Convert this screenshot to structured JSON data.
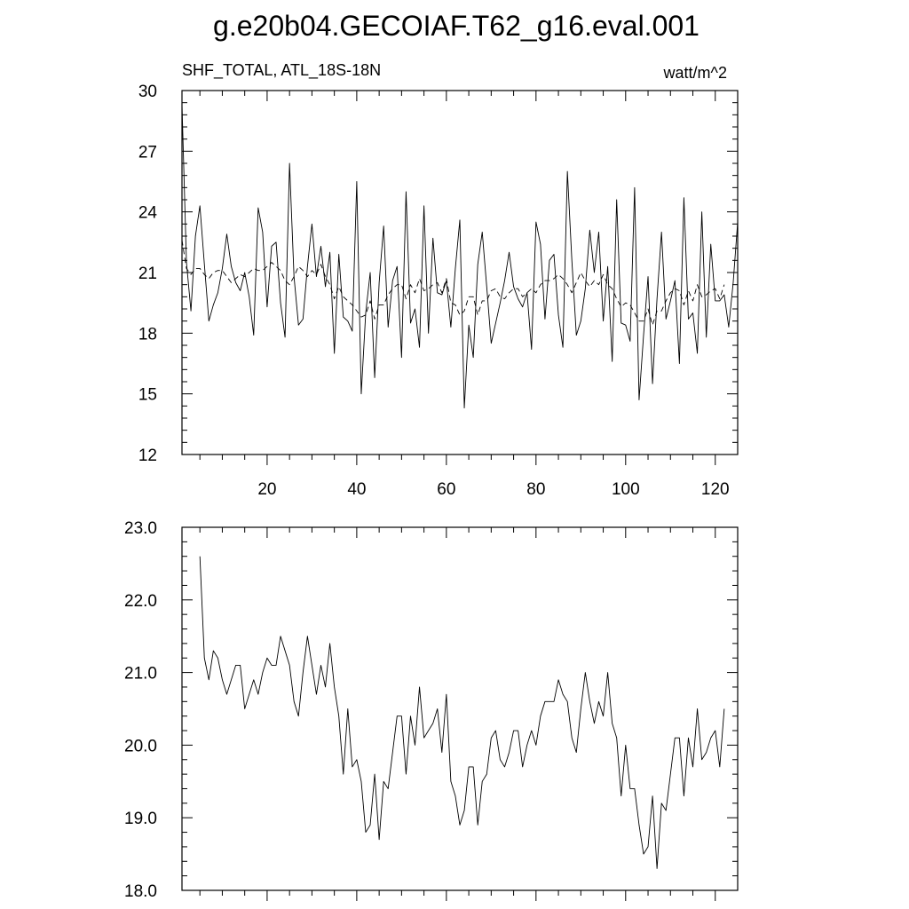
{
  "page_title": "g.e20b04.GECOIAF.T62_g16.eval.001",
  "colors": {
    "background": "#ffffff",
    "line": "#000000"
  },
  "chart_data": [
    {
      "type": "line",
      "left_label": "SHF_TOTAL, ATL_18S-18N",
      "right_label": "watt/m^2",
      "xlim": [
        1,
        125
      ],
      "ylim": [
        12,
        30
      ],
      "x_ticks": [
        20,
        40,
        60,
        80,
        100,
        120
      ],
      "y_ticks": [
        12,
        15,
        18,
        21,
        24,
        27,
        30
      ],
      "y_tick_labels": [
        "12",
        "15",
        "18",
        "21",
        "24",
        "27",
        "30"
      ],
      "grid": false,
      "series": [
        {
          "style": "solid",
          "values": [
            29.3,
            21.5,
            19.1,
            22.8,
            24.3,
            21.4,
            18.6,
            19.4,
            20.0,
            21.2,
            22.9,
            21.3,
            20.5,
            20.1,
            21.0,
            19.8,
            17.9,
            24.2,
            23.0,
            19.3,
            22.3,
            22.5,
            19.5,
            17.8,
            26.4,
            20.8,
            18.4,
            18.7,
            21.3,
            23.4,
            20.8,
            22.3,
            20.3,
            22.0,
            17.0,
            21.9,
            18.8,
            18.6,
            18.1,
            25.5,
            15.0,
            19.0,
            21.0,
            15.8,
            20.5,
            23.3,
            18.3,
            20.6,
            21.3,
            16.8,
            25.0,
            18.5,
            19.2,
            17.3,
            24.3,
            18.0,
            22.7,
            20.0,
            19.9,
            20.6,
            18.3,
            21.2,
            23.6,
            14.3,
            18.4,
            16.8,
            21.4,
            23.0,
            20.3,
            17.5,
            18.5,
            19.5,
            20.6,
            22.0,
            20.3,
            19.7,
            19.3,
            20.0,
            17.2,
            23.5,
            22.4,
            18.7,
            21.6,
            21.9,
            18.9,
            17.3,
            26.0,
            21.6,
            17.9,
            18.6,
            20.2,
            23.1,
            21.0,
            23.0,
            18.6,
            21.3,
            16.6,
            24.6,
            18.5,
            18.4,
            17.6,
            25.2,
            14.7,
            17.9,
            20.8,
            15.5,
            19.7,
            23.0,
            18.7,
            19.6,
            20.6,
            16.5,
            24.7,
            18.7,
            19.0,
            17.0,
            24.0,
            17.8,
            22.4,
            19.6,
            19.6,
            19.9,
            18.3,
            20.5,
            23.5
          ]
        },
        {
          "style": "dashed",
          "values": [
            22.6,
            21.2,
            20.9,
            21.2,
            21.2,
            20.9,
            20.7,
            21.0,
            21.1,
            21.1,
            20.8,
            20.5,
            20.7,
            20.9,
            20.8,
            21.0,
            21.2,
            21.1,
            21.1,
            21.3,
            21.5,
            21.3,
            21.1,
            20.6,
            20.4,
            20.8,
            21.3,
            21.1,
            20.8,
            21.1,
            20.9,
            21.4,
            20.8,
            20.4,
            19.7,
            20.3,
            19.8,
            19.6,
            19.4,
            19.1,
            18.8,
            18.9,
            19.6,
            18.7,
            19.4,
            19.4,
            19.9,
            20.2,
            20.4,
            20.4,
            19.7,
            20.4,
            20.0,
            20.7,
            20.1,
            20.2,
            20.4,
            20.5,
            20.0,
            20.7,
            19.5,
            19.4,
            18.9,
            19.1,
            19.8,
            19.8,
            18.9,
            19.6,
            19.6,
            20.1,
            20.2,
            19.8,
            19.7,
            20.0,
            20.2,
            20.2,
            19.8,
            20.0,
            20.2,
            20.0,
            20.4,
            20.6,
            20.6,
            20.7,
            20.9,
            20.7,
            20.4,
            20.0,
            20.5,
            21.0,
            20.6,
            20.3,
            20.6,
            20.4,
            20.9,
            20.4,
            20.2,
            19.7,
            19.3,
            19.5,
            19.4,
            19.0,
            18.6,
            18.6,
            19.2,
            18.4,
            19.1,
            19.1,
            19.6,
            20.0,
            20.2,
            20.1,
            19.4,
            20.1,
            19.6,
            20.4,
            19.8,
            19.9,
            20.1,
            20.2,
            19.7,
            20.4
          ]
        }
      ]
    },
    {
      "type": "line",
      "xlim": [
        1,
        125
      ],
      "ylim": [
        18,
        23
      ],
      "x_ticks": [
        20,
        40,
        60,
        80,
        100,
        120
      ],
      "y_ticks": [
        18,
        19,
        20,
        21,
        22,
        23
      ],
      "y_tick_labels": [
        "18.0",
        "19.0",
        "20.0",
        "21.0",
        "22.0",
        "23.0"
      ],
      "grid": false,
      "series": [
        {
          "style": "solid",
          "x_start": 5,
          "values": [
            22.6,
            21.2,
            20.9,
            21.3,
            21.2,
            20.9,
            20.7,
            20.9,
            21.1,
            21.1,
            20.5,
            20.7,
            20.9,
            20.7,
            21.0,
            21.2,
            21.1,
            21.1,
            21.5,
            21.3,
            21.1,
            20.6,
            20.4,
            21.0,
            21.5,
            21.1,
            20.7,
            21.1,
            20.8,
            21.4,
            20.8,
            20.4,
            19.6,
            20.5,
            19.7,
            19.8,
            19.5,
            18.8,
            18.9,
            19.6,
            18.7,
            19.5,
            19.4,
            19.9,
            20.4,
            20.4,
            19.6,
            20.4,
            20.0,
            20.8,
            20.1,
            20.2,
            20.3,
            20.5,
            19.9,
            20.7,
            19.5,
            19.3,
            18.9,
            19.1,
            19.7,
            19.7,
            18.9,
            19.5,
            19.6,
            20.1,
            20.2,
            19.8,
            19.7,
            19.9,
            20.2,
            20.2,
            19.7,
            20.0,
            20.2,
            20.0,
            20.4,
            20.6,
            20.6,
            20.6,
            20.9,
            20.7,
            20.6,
            20.1,
            19.9,
            20.5,
            21.0,
            20.6,
            20.3,
            20.6,
            20.4,
            21.0,
            20.3,
            20.1,
            19.3,
            20.0,
            19.4,
            19.4,
            18.9,
            18.5,
            18.6,
            19.3,
            18.3,
            19.2,
            19.1,
            19.6,
            20.1,
            20.1,
            19.3,
            20.1,
            19.7,
            20.5,
            19.8,
            19.9,
            20.1,
            20.2,
            19.7,
            20.5
          ]
        }
      ]
    }
  ]
}
